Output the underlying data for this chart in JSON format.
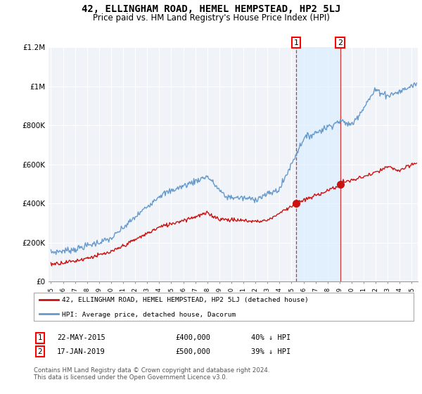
{
  "title": "42, ELLINGHAM ROAD, HEMEL HEMPSTEAD, HP2 5LJ",
  "subtitle": "Price paid vs. HM Land Registry's House Price Index (HPI)",
  "title_fontsize": 10,
  "subtitle_fontsize": 8.5,
  "background_color": "#ffffff",
  "plot_bg_color": "#f0f4f8",
  "grid_color": "#ffffff",
  "hpi_color": "#6699cc",
  "price_color": "#cc1111",
  "shade_color": "#ddeeff",
  "marker1_date_num": 2015.39,
  "marker2_date_num": 2019.04,
  "marker1_price": 400000,
  "marker2_price": 500000,
  "marker1_label": "1",
  "marker2_label": "2",
  "marker1_text": "22-MAY-2015",
  "marker2_text": "17-JAN-2019",
  "marker1_pct": "40% ↓ HPI",
  "marker2_pct": "39% ↓ HPI",
  "ylim": [
    0,
    1200000
  ],
  "xlim": [
    1994.8,
    2025.5
  ],
  "legend_line1": "42, ELLINGHAM ROAD, HEMEL HEMPSTEAD, HP2 5LJ (detached house)",
  "legend_line2": "HPI: Average price, detached house, Dacorum",
  "footer": "Contains HM Land Registry data © Crown copyright and database right 2024.\nThis data is licensed under the Open Government Licence v3.0.",
  "yticks": [
    0,
    200000,
    400000,
    600000,
    800000,
    1000000,
    1200000
  ],
  "ytick_labels": [
    "£0",
    "£200K",
    "£400K",
    "£600K",
    "£800K",
    "£1M",
    "£1.2M"
  ]
}
